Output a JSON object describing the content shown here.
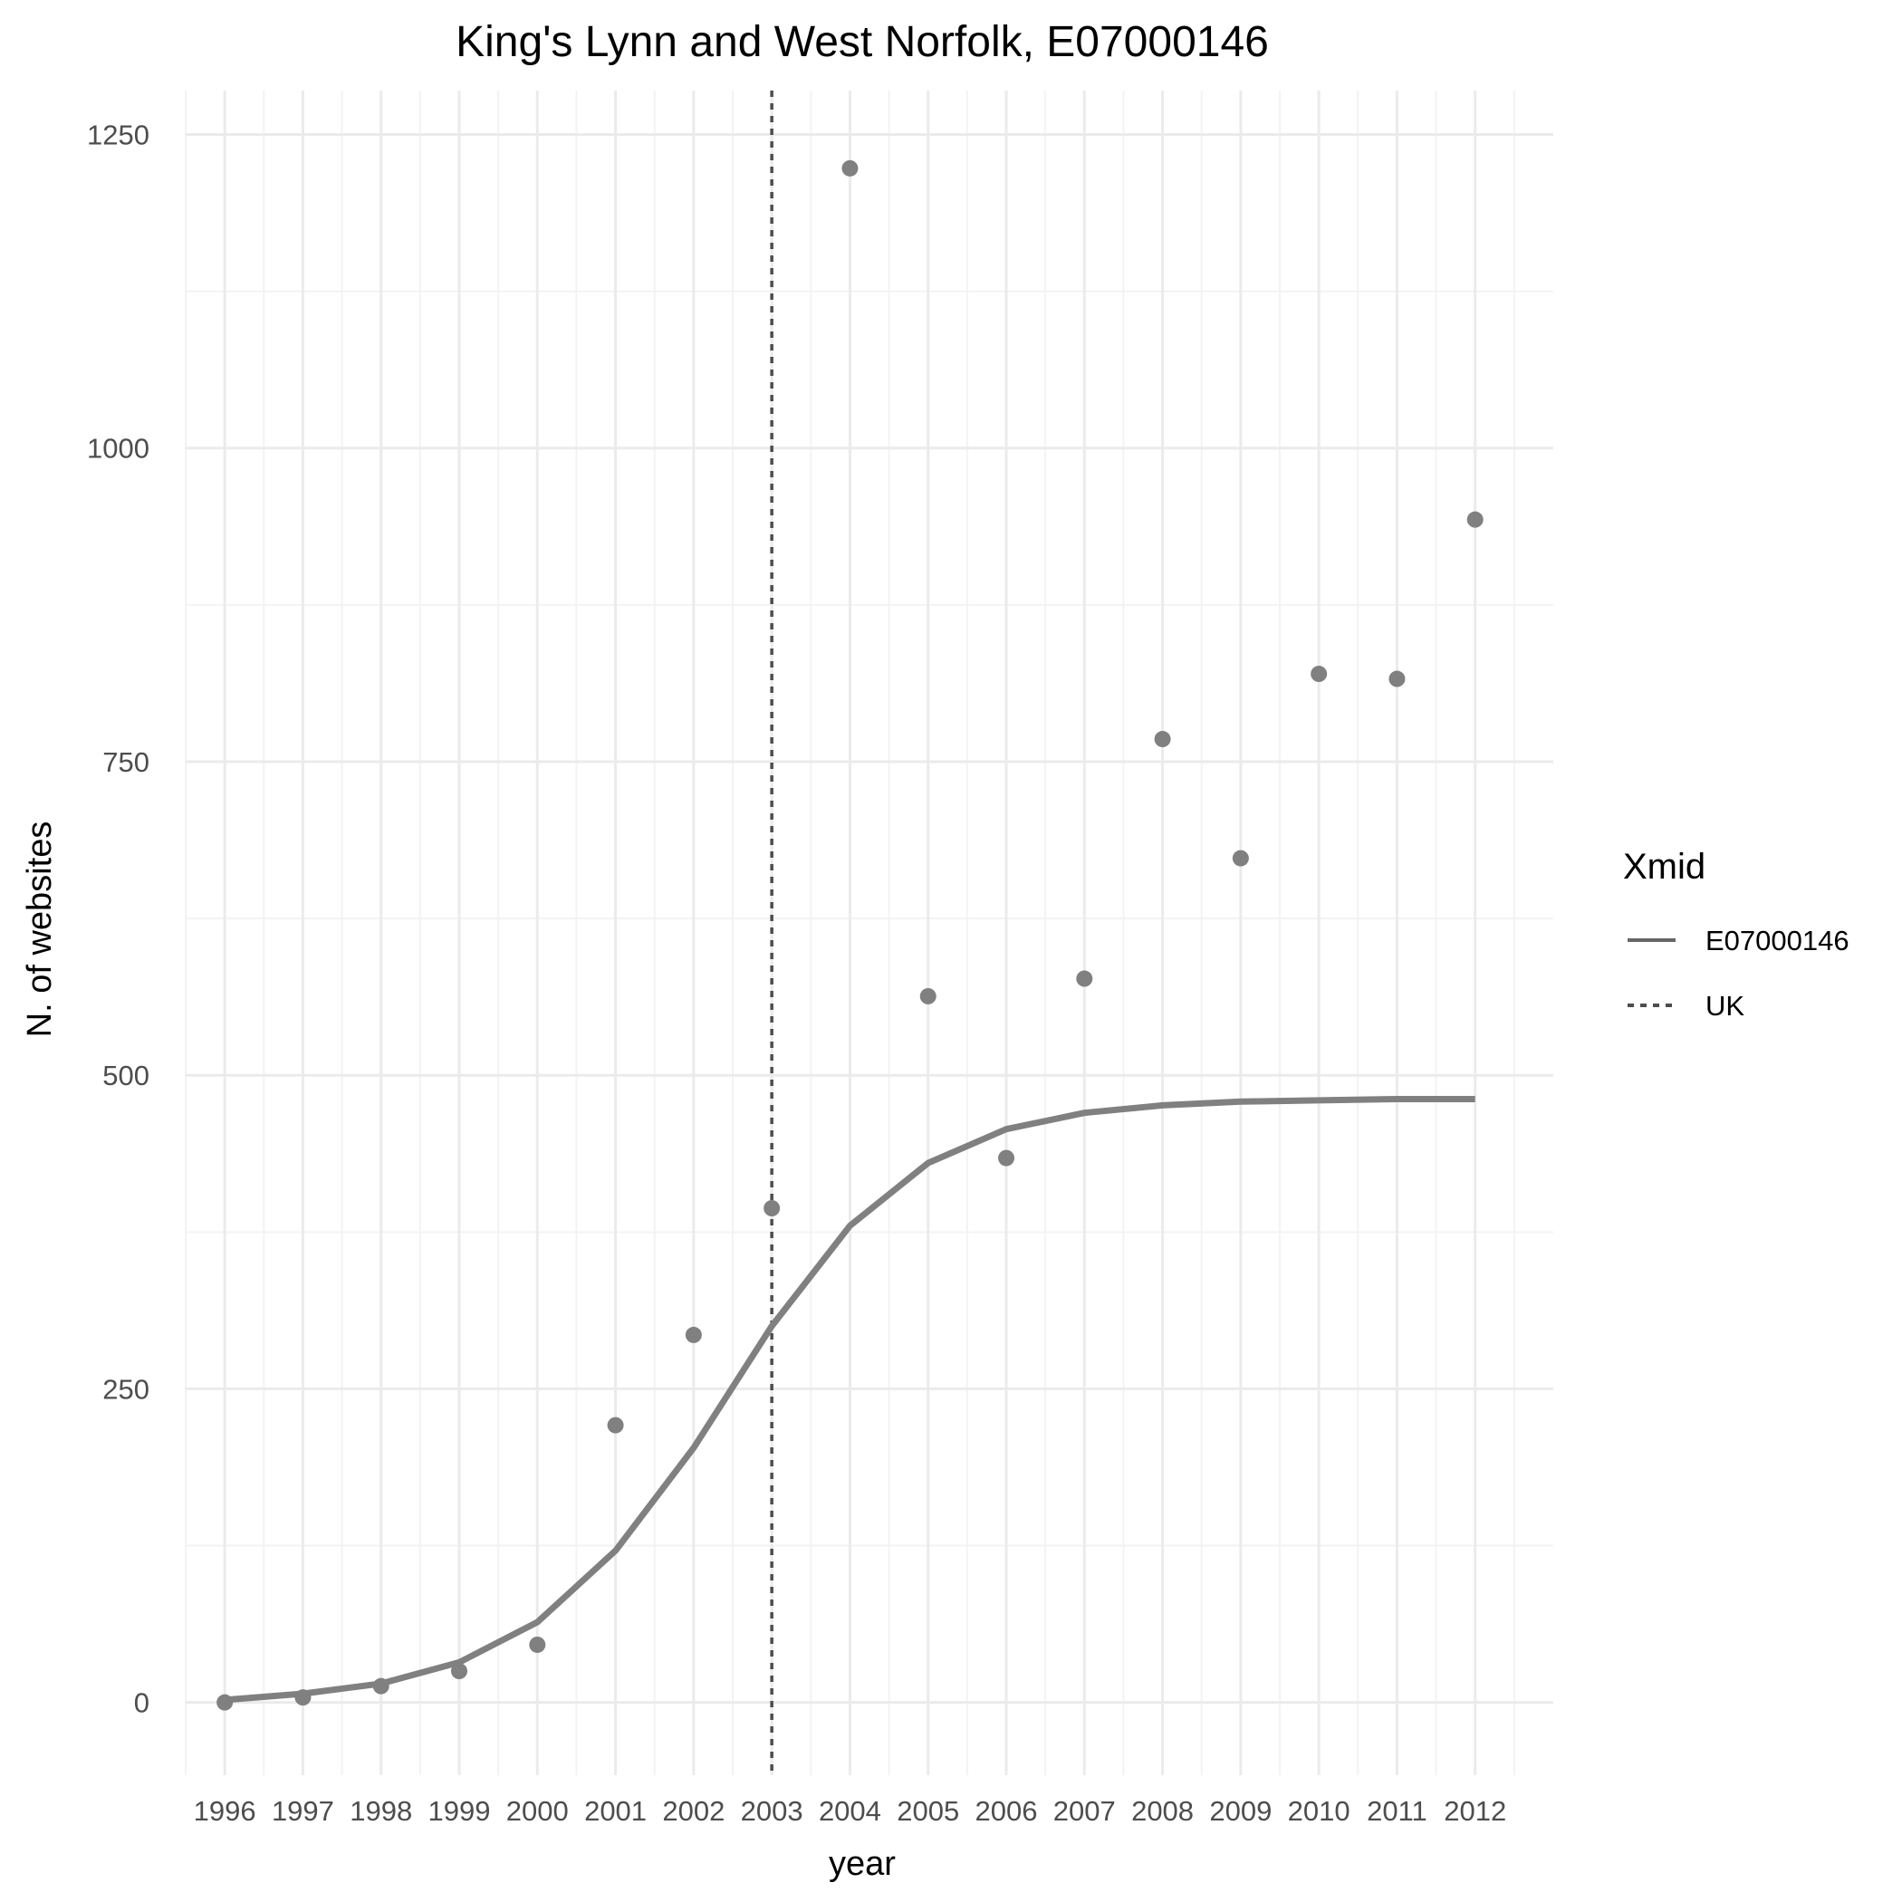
{
  "chart_data": {
    "type": "scatter",
    "title": "King's Lynn and West Norfolk, E07000146",
    "xlabel": "year",
    "ylabel": "N. of websites",
    "x": [
      1996,
      1997,
      1998,
      1999,
      2000,
      2001,
      2002,
      2003,
      2004,
      2005,
      2006,
      2007,
      2008,
      2009,
      2010,
      2011,
      2012
    ],
    "x_ticks": [
      "1996",
      "1997",
      "1998",
      "1999",
      "2000",
      "2001",
      "2002",
      "2003",
      "2004",
      "2005",
      "2006",
      "2007",
      "2008",
      "2009",
      "2010",
      "2011",
      "2012"
    ],
    "y_ticks": [
      "0",
      "250",
      "500",
      "750",
      "1000",
      "1250"
    ],
    "xlim": [
      1995.5,
      2013.0
    ],
    "ylim": [
      -58,
      1285
    ],
    "grid": true,
    "points": [
      {
        "x": 1996,
        "y": 0
      },
      {
        "x": 1997,
        "y": 4
      },
      {
        "x": 1998,
        "y": 13
      },
      {
        "x": 1999,
        "y": 25
      },
      {
        "x": 2000,
        "y": 46
      },
      {
        "x": 2001,
        "y": 221
      },
      {
        "x": 2002,
        "y": 293
      },
      {
        "x": 2003,
        "y": 394
      },
      {
        "x": 2004,
        "y": 1223
      },
      {
        "x": 2005,
        "y": 563
      },
      {
        "x": 2006,
        "y": 434
      },
      {
        "x": 2007,
        "y": 577
      },
      {
        "x": 2008,
        "y": 768
      },
      {
        "x": 2009,
        "y": 673
      },
      {
        "x": 2010,
        "y": 820
      },
      {
        "x": 2011,
        "y": 816
      },
      {
        "x": 2012,
        "y": 943
      }
    ],
    "fit_line": {
      "name": "E07000146",
      "x": [
        1996,
        1997,
        1998,
        1999,
        2000,
        2001,
        2002,
        2003,
        2004,
        2005,
        2006,
        2007,
        2008,
        2009,
        2010,
        2011,
        2012
      ],
      "y": [
        2,
        7,
        15,
        32,
        64,
        121,
        203,
        300,
        380,
        430,
        457,
        470,
        476,
        479,
        480,
        481,
        481
      ]
    },
    "vline": {
      "name": "UK",
      "x": 2003
    },
    "legend": {
      "title": "Xmid",
      "position": "right",
      "entries": [
        {
          "label": "E07000146",
          "style": "solid"
        },
        {
          "label": "UK",
          "style": "dashed"
        }
      ]
    },
    "colors": {
      "points": "#808080",
      "fit_line": "#808080",
      "vline": "#4d4d4d",
      "legend_line": "#666666",
      "grid_major": "#ebebeb",
      "grid_minor": "#f3f3f3"
    }
  }
}
